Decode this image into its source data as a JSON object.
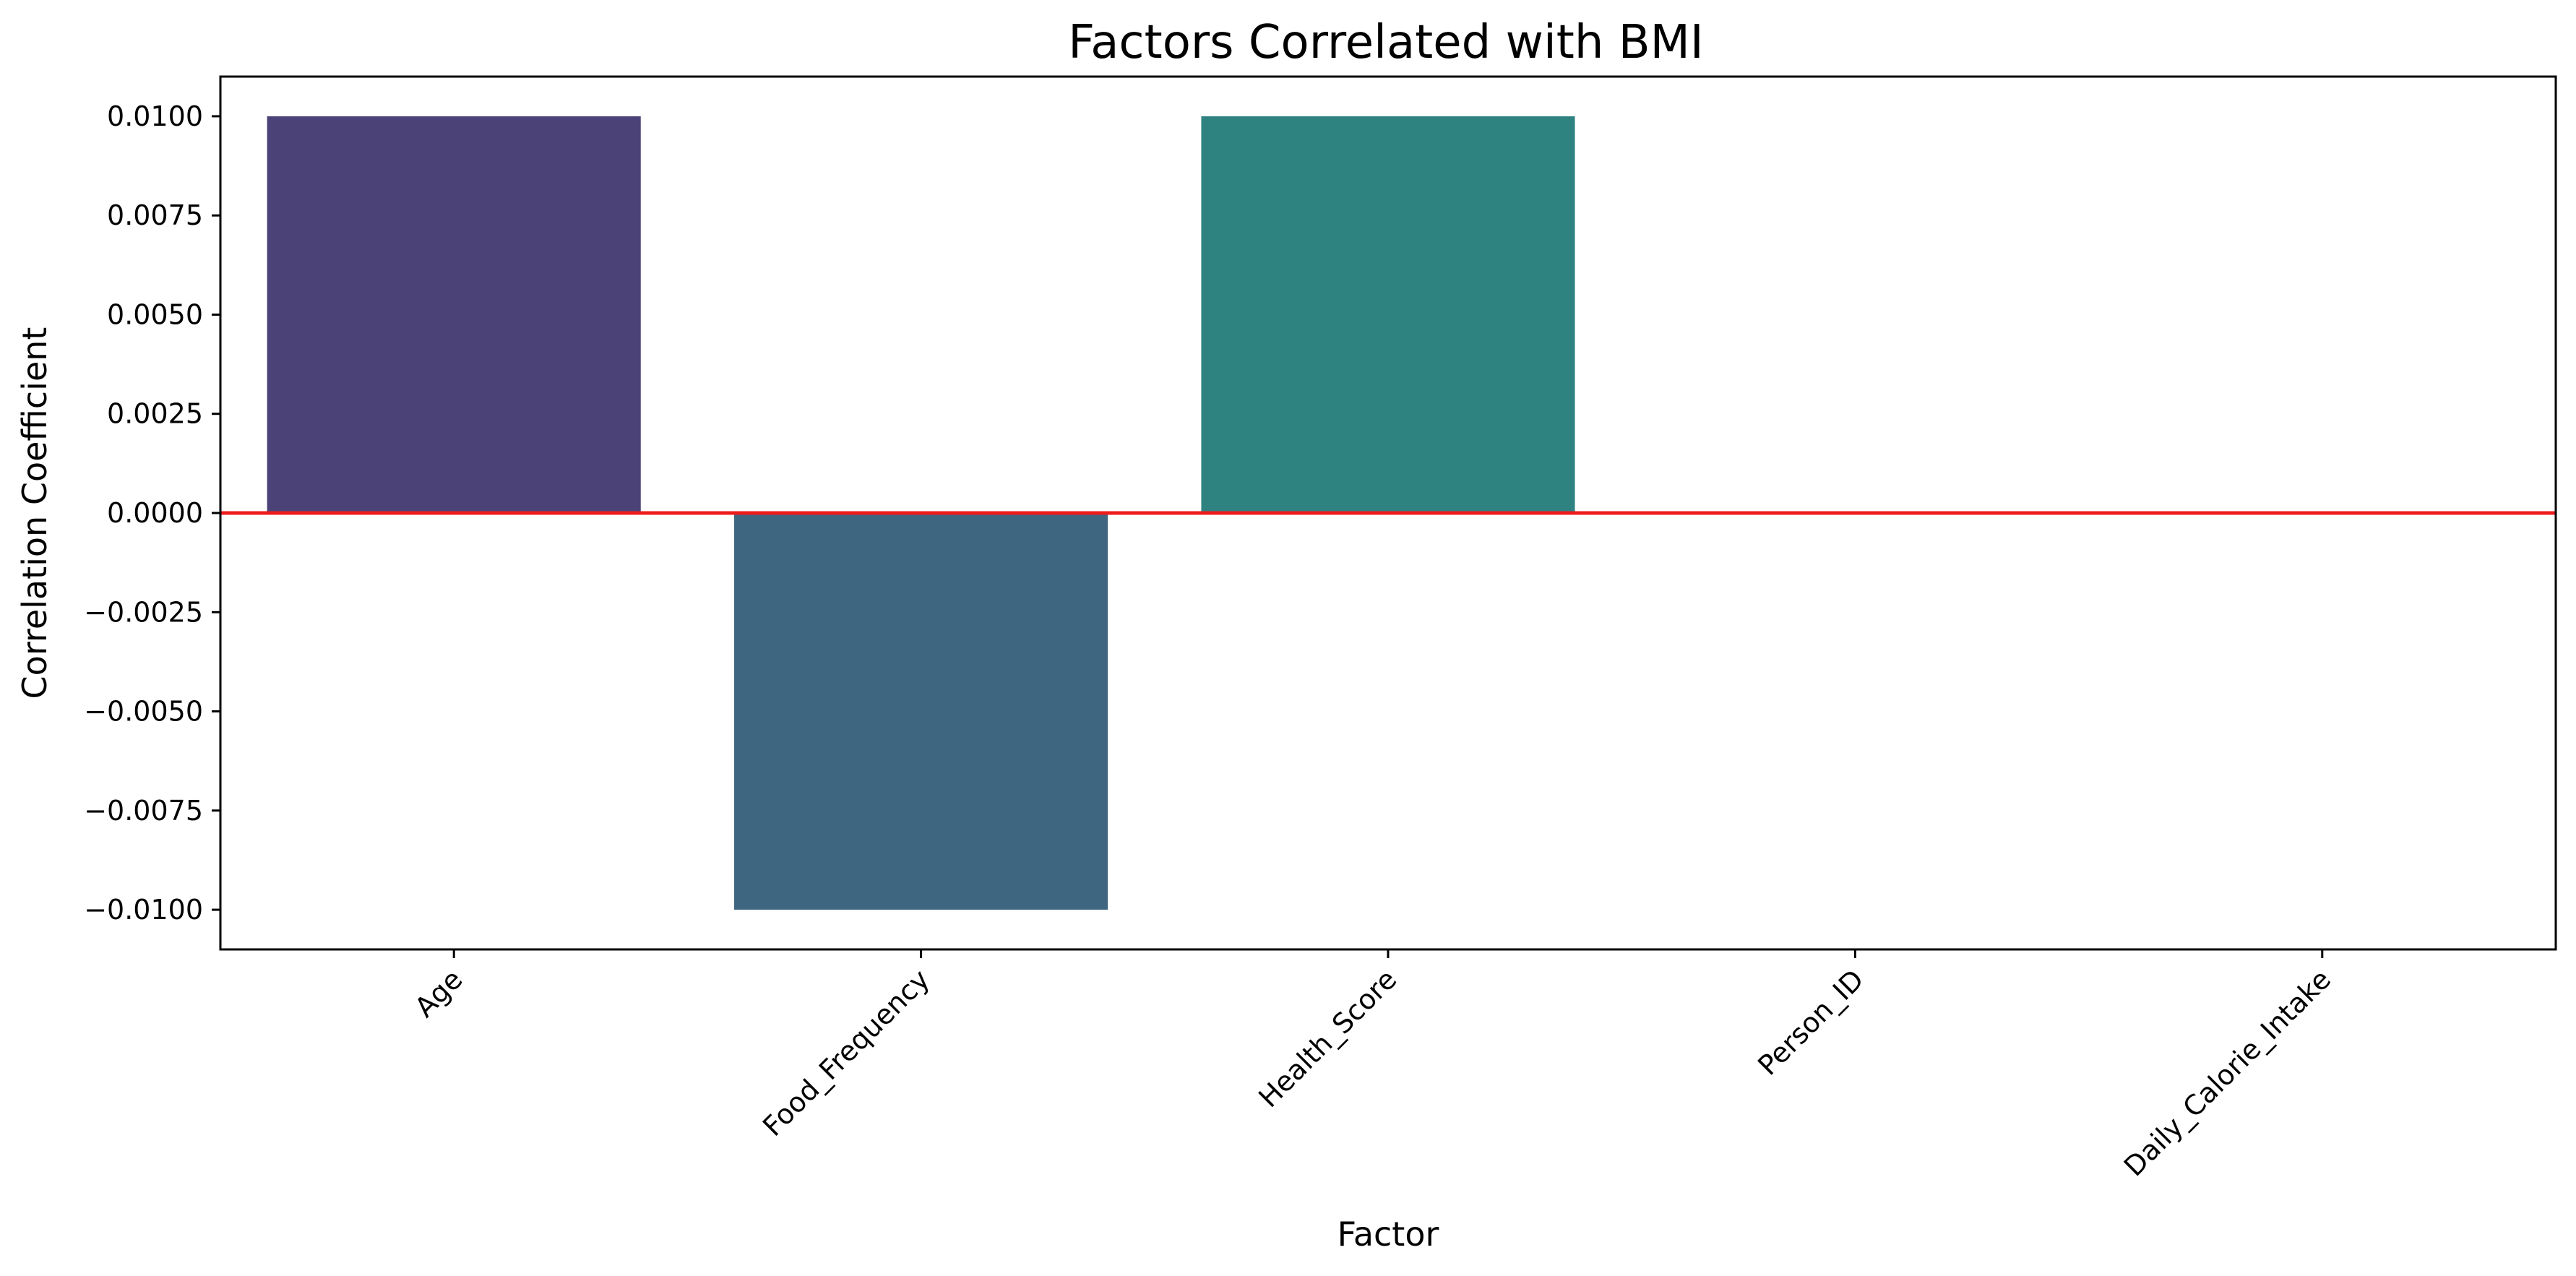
{
  "chart_data": {
    "type": "bar",
    "title": "Factors Correlated with BMI",
    "xlabel": "Factor",
    "ylabel": "Correlation Coefficient",
    "categories": [
      "Age",
      "Food_Frequency",
      "Health_Score",
      "Person_ID",
      "Daily_Calorie_Intake"
    ],
    "values": [
      0.01,
      -0.01,
      0.01,
      0.0,
      0.0
    ],
    "bar_colors": [
      "#4b4378",
      "#3f6680",
      "#2e8380",
      "#2e8380",
      "#2e8380"
    ],
    "ylim": [
      -0.011,
      0.011
    ],
    "yticks": [
      0.01,
      0.0075,
      0.005,
      0.0025,
      0.0,
      -0.0025,
      -0.005,
      -0.0075,
      -0.01
    ],
    "ytick_labels": [
      "0.0100",
      "0.0075",
      "0.0050",
      "0.0025",
      "0.0000",
      "−0.0025",
      "−0.0050",
      "−0.0075",
      "−0.0100"
    ],
    "reference_line": {
      "y": 0.0,
      "color": "#ee1c1c"
    },
    "grid": false,
    "legend": null
  }
}
